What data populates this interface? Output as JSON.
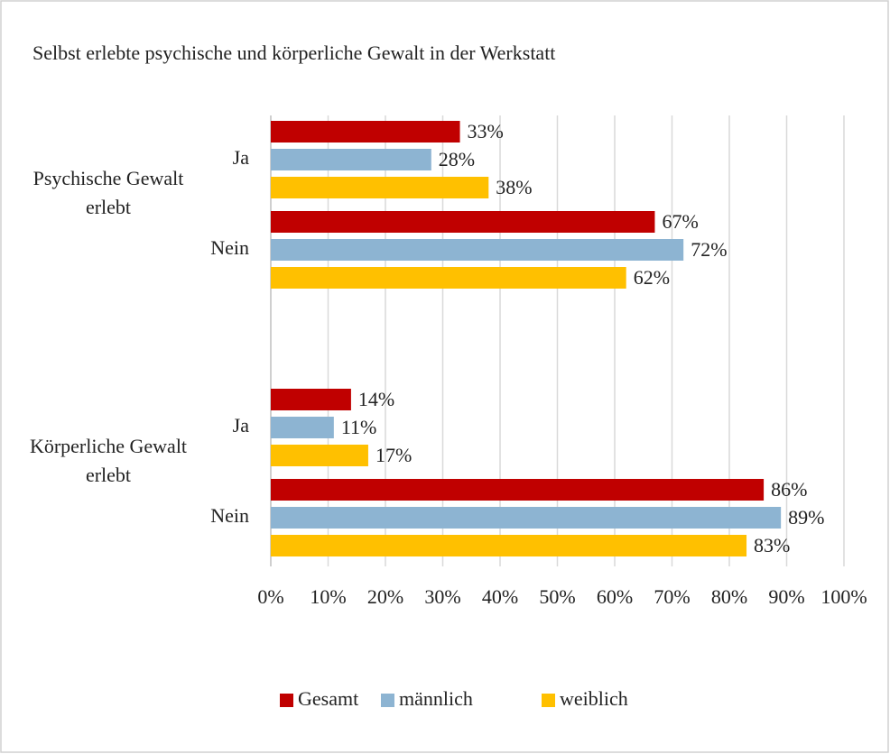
{
  "chart_data": {
    "type": "bar",
    "orientation": "horizontal",
    "title": "Selbst erlebte psychische und körperliche Gewalt in der Werkstatt",
    "groups": [
      "Psychische Gewalt erlebt",
      "Körperliche Gewalt erlebt"
    ],
    "categories": [
      "Ja",
      "Nein",
      "Ja",
      "Nein"
    ],
    "series": [
      {
        "name": "Gesamt",
        "color": "#c00000",
        "values": [
          33,
          67,
          14,
          86
        ],
        "value_labels": [
          "33%",
          "67%",
          "14%",
          "86%"
        ]
      },
      {
        "name": "männlich",
        "color": "#8db4d2",
        "values": [
          28,
          72,
          11,
          89
        ],
        "value_labels": [
          "28%",
          "72%",
          "11%",
          "89%"
        ]
      },
      {
        "name": "weiblich",
        "color": "#ffc000",
        "values": [
          38,
          62,
          17,
          83
        ],
        "value_labels": [
          "38%",
          "62%",
          "17%",
          "83%"
        ]
      }
    ],
    "xlim": [
      0,
      100
    ],
    "xticks": [
      {
        "value": 0,
        "label": "0%"
      },
      {
        "value": 10,
        "label": "10%"
      },
      {
        "value": 20,
        "label": "20%"
      },
      {
        "value": 30,
        "label": "30%"
      },
      {
        "value": 40,
        "label": "40%"
      },
      {
        "value": 50,
        "label": "50%"
      },
      {
        "value": 60,
        "label": "60%"
      },
      {
        "value": 70,
        "label": "70%"
      },
      {
        "value": 80,
        "label": "80%"
      },
      {
        "value": 90,
        "label": "90%"
      },
      {
        "value": 100,
        "label": "100%"
      }
    ],
    "grid": true,
    "legend": "bottom"
  }
}
